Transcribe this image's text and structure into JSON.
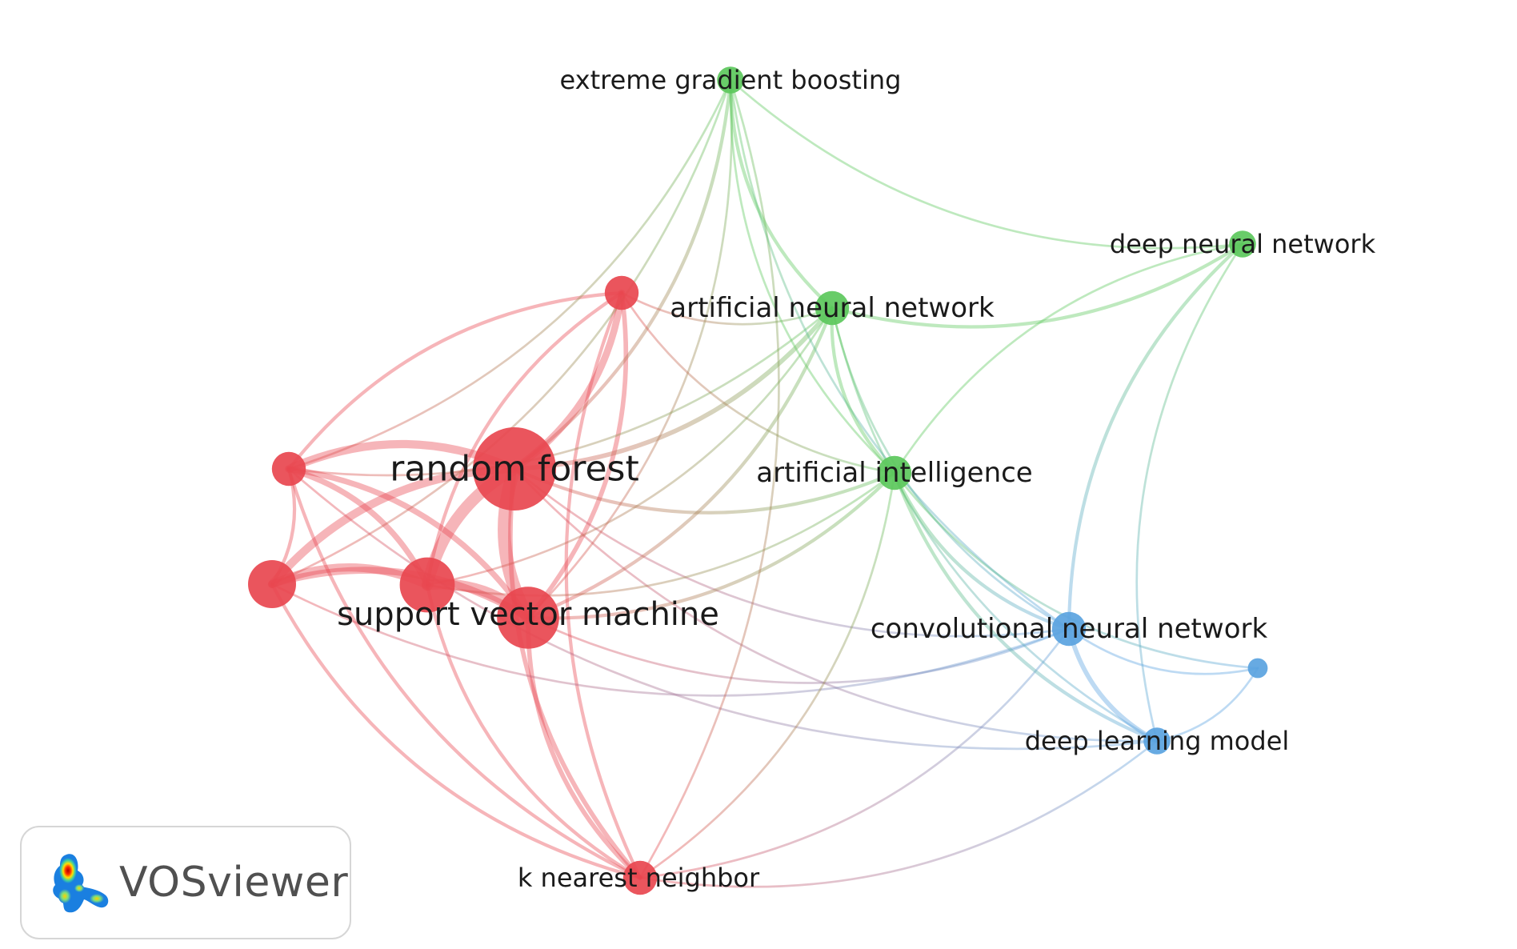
{
  "diagram": {
    "type": "co-occurrence network",
    "clusters": [
      {
        "id": "red",
        "color": "#e8474f"
      },
      {
        "id": "green",
        "color": "#5cc85c"
      },
      {
        "id": "blue",
        "color": "#5aa3e0"
      }
    ],
    "nodes": [
      {
        "id": "rf",
        "label": "random forest",
        "cluster": "red",
        "weight": 10
      },
      {
        "id": "svm",
        "label": "support vector machine",
        "cluster": "red",
        "weight": 7
      },
      {
        "id": "r3",
        "label": "",
        "cluster": "red",
        "weight": 6
      },
      {
        "id": "r4",
        "label": "",
        "cluster": "red",
        "weight": 5
      },
      {
        "id": "r5",
        "label": "",
        "cluster": "red",
        "weight": 3
      },
      {
        "id": "r6",
        "label": "",
        "cluster": "red",
        "weight": 3
      },
      {
        "id": "knn",
        "label": "k nearest neighbor",
        "cluster": "red",
        "weight": 3
      },
      {
        "id": "xgb",
        "label": "extreme gradient boosting",
        "cluster": "green",
        "weight": 2
      },
      {
        "id": "ann",
        "label": "artificial neural network",
        "cluster": "green",
        "weight": 3
      },
      {
        "id": "dnn",
        "label": "deep neural network",
        "cluster": "green",
        "weight": 2
      },
      {
        "id": "ai",
        "label": "artificial intelligence",
        "cluster": "green",
        "weight": 3
      },
      {
        "id": "cnn",
        "label": "convolutional neural network",
        "cluster": "blue",
        "weight": 3
      },
      {
        "id": "b2",
        "label": "",
        "cluster": "blue",
        "weight": 1
      },
      {
        "id": "dlm",
        "label": "deep learning model",
        "cluster": "blue",
        "weight": 2
      }
    ],
    "links": [
      [
        "rf",
        "svm",
        10
      ],
      [
        "rf",
        "r3",
        9
      ],
      [
        "rf",
        "r4",
        6
      ],
      [
        "rf",
        "r5",
        5
      ],
      [
        "rf",
        "r6",
        6
      ],
      [
        "rf",
        "knn",
        3
      ],
      [
        "svm",
        "r3",
        8
      ],
      [
        "svm",
        "r4",
        5
      ],
      [
        "svm",
        "r5",
        3
      ],
      [
        "svm",
        "r6",
        4
      ],
      [
        "svm",
        "knn",
        3
      ],
      [
        "r3",
        "r4",
        6
      ],
      [
        "r3",
        "r6",
        4
      ],
      [
        "r3",
        "knn",
        2
      ],
      [
        "r4",
        "r6",
        2
      ],
      [
        "r4",
        "knn",
        2
      ],
      [
        "r5",
        "r6",
        2
      ],
      [
        "r5",
        "knn",
        2
      ],
      [
        "r6",
        "knn",
        2
      ],
      [
        "r5",
        "r3",
        2
      ],
      [
        "rf",
        "ann",
        3
      ],
      [
        "rf",
        "xgb",
        2
      ],
      [
        "rf",
        "ai",
        2
      ],
      [
        "rf",
        "cnn",
        1
      ],
      [
        "rf",
        "dlm",
        1
      ],
      [
        "svm",
        "ann",
        2
      ],
      [
        "svm",
        "ai",
        2
      ],
      [
        "svm",
        "xgb",
        1
      ],
      [
        "svm",
        "cnn",
        1
      ],
      [
        "r3",
        "ann",
        1
      ],
      [
        "r3",
        "ai",
        1
      ],
      [
        "r4",
        "xgb",
        1
      ],
      [
        "r4",
        "cnn",
        1
      ],
      [
        "r6",
        "xgb",
        1
      ],
      [
        "r6",
        "ann",
        1
      ],
      [
        "r6",
        "dlm",
        1
      ],
      [
        "r5",
        "ai",
        1
      ],
      [
        "r5",
        "ann",
        1
      ],
      [
        "knn",
        "xgb",
        1
      ],
      [
        "knn",
        "ai",
        1
      ],
      [
        "knn",
        "cnn",
        1
      ],
      [
        "knn",
        "dlm",
        1
      ],
      [
        "xgb",
        "ann",
        2
      ],
      [
        "xgb",
        "ai",
        1
      ],
      [
        "xgb",
        "dnn",
        1
      ],
      [
        "xgb",
        "cnn",
        1
      ],
      [
        "ann",
        "dnn",
        2
      ],
      [
        "ann",
        "ai",
        2
      ],
      [
        "ann",
        "cnn",
        1
      ],
      [
        "ann",
        "dlm",
        1
      ],
      [
        "dnn",
        "ai",
        1
      ],
      [
        "dnn",
        "cnn",
        2
      ],
      [
        "dnn",
        "dlm",
        1
      ],
      [
        "ai",
        "cnn",
        2
      ],
      [
        "ai",
        "dlm",
        2
      ],
      [
        "ai",
        "b2",
        1
      ],
      [
        "cnn",
        "dlm",
        3
      ],
      [
        "cnn",
        "b2",
        1
      ],
      [
        "dlm",
        "b2",
        1
      ]
    ]
  },
  "badge": {
    "text": "VOSviewer",
    "logo_icon": "vosviewer-logo-icon"
  }
}
